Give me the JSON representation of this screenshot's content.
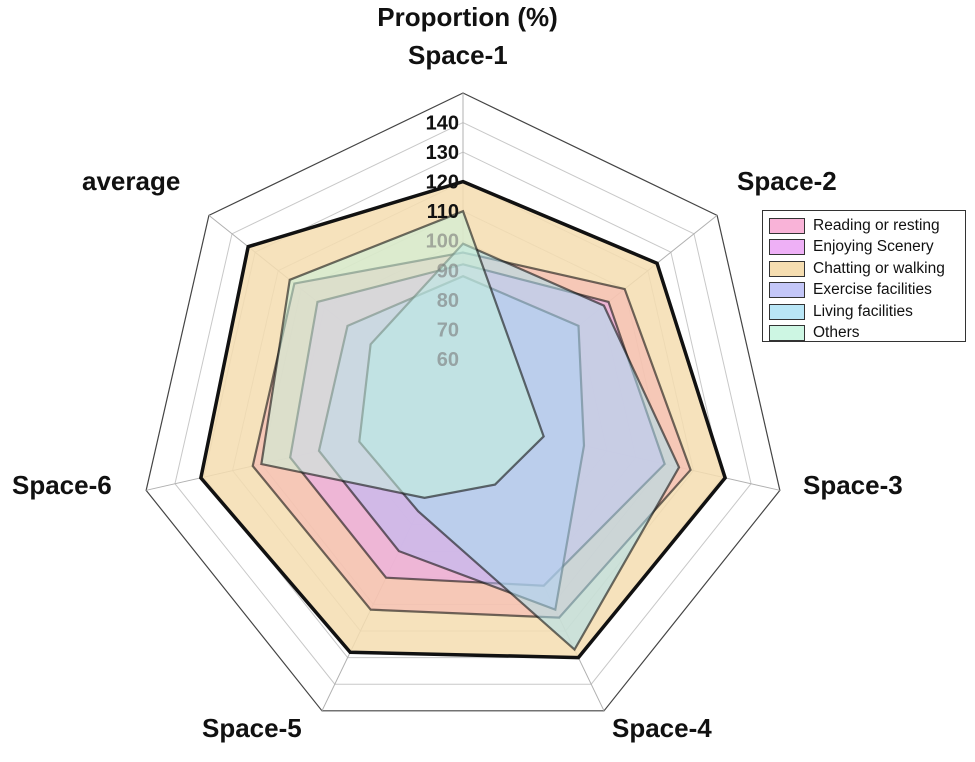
{
  "chart_data": {
    "type": "radar",
    "title": "Proportion (%)",
    "categories": [
      "Space-1",
      "Space-2",
      "Space-3",
      "Space-4",
      "Space-5",
      "Space-6",
      "average"
    ],
    "r_ticks": [
      140,
      130,
      120,
      110,
      100,
      90,
      80,
      70,
      60
    ],
    "r_range": [
      40,
      150
    ],
    "grid": true,
    "legend_position": "right",
    "series": [
      {
        "name": "Chatting or walking",
        "color": "#f5ddb0",
        "values": [
          120,
          124,
          131,
          130,
          128,
          131,
          133
        ]
      },
      {
        "name": "Reading or resting",
        "color": "#f6b3b3",
        "values": [
          96,
          110,
          119,
          115,
          112,
          113,
          113
        ]
      },
      {
        "name": "Enjoying Scenery",
        "color": "#e8a7f0",
        "values": [
          92,
          103,
          110,
          103,
          100,
          100,
          103
        ]
      },
      {
        "name": "Exercise facilities",
        "color": "#b9bcf5",
        "values": [
          88,
          90,
          82,
          112,
          90,
          90,
          90
        ]
      },
      {
        "name": "Living facilities",
        "color": "#a9e0f0",
        "values": [
          99,
          101,
          115,
          127,
          75,
          76,
          80
        ]
      },
      {
        "name": "Others",
        "color": "#c6f2dc",
        "values": [
          110,
          65,
          68,
          65,
          70,
          110,
          115
        ]
      }
    ]
  }
}
